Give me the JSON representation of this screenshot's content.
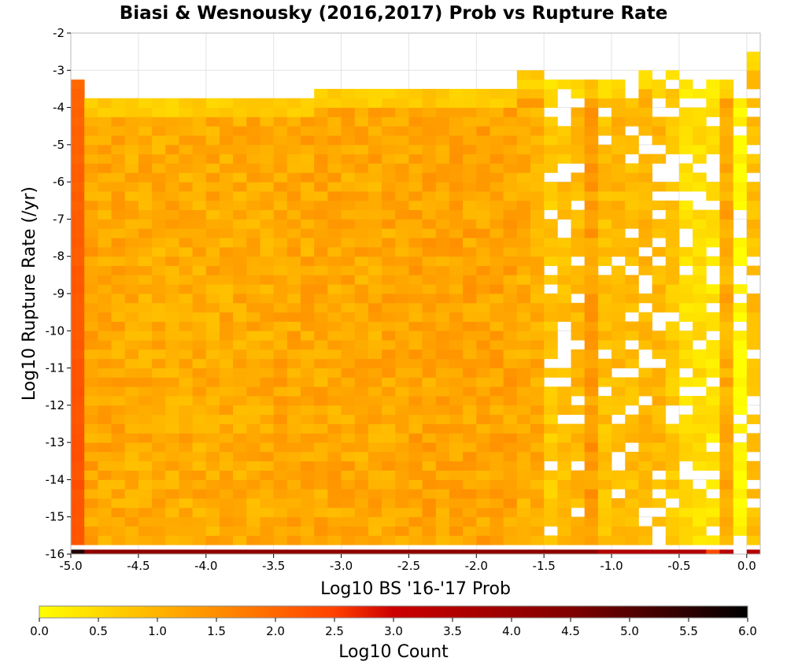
{
  "chart_data": {
    "type": "heatmap",
    "title": "Biasi & Wesnousky (2016,2017) Prob vs Rupture Rate",
    "xlabel": "Log10 BS '16-'17 Prob",
    "ylabel": "Log10 Rupture Rate (/yr)",
    "xlim": [
      -5.0,
      0.1
    ],
    "ylim": [
      -16,
      -2
    ],
    "x_ticks": [
      "-5.0",
      "-4.5",
      "-4.0",
      "-3.5",
      "-3.0",
      "-2.5",
      "-2.0",
      "-1.5",
      "-1.0",
      "-0.5",
      "0.0"
    ],
    "y_ticks": [
      "-2",
      "-3",
      "-4",
      "-5",
      "-6",
      "-7",
      "-8",
      "-9",
      "-10",
      "-11",
      "-12",
      "-13",
      "-14",
      "-15",
      "-16"
    ],
    "bin_width_x": 0.1,
    "bin_width_y": 0.25,
    "grid": true,
    "colorbar": {
      "label": "Log10 Count",
      "range": [
        0.0,
        6.0
      ],
      "ticks": [
        "0.0",
        "0.5",
        "1.0",
        "1.5",
        "2.0",
        "2.5",
        "3.0",
        "3.5",
        "4.0",
        "4.5",
        "5.0",
        "5.5",
        "6.0"
      ],
      "colors": [
        "#ffff00",
        "#ffa500",
        "#ff4000",
        "#cc0000",
        "#800000",
        "#000000"
      ]
    },
    "column_profile": {
      "x": [
        -5.0,
        -4.9,
        -4.8,
        -4.7,
        -4.6,
        -4.5,
        -4.4,
        -4.3,
        -4.2,
        -4.1,
        -4.0,
        -3.9,
        -3.8,
        -3.7,
        -3.6,
        -3.5,
        -3.4,
        -3.3,
        -3.2,
        -3.1,
        -3.0,
        -2.9,
        -2.8,
        -2.7,
        -2.6,
        -2.5,
        -2.4,
        -2.3,
        -2.2,
        -2.1,
        -2.0,
        -1.9,
        -1.8,
        -1.7,
        -1.6,
        -1.5,
        -1.4,
        -1.3,
        -1.2,
        -1.1,
        -1.0,
        -0.9,
        -0.8,
        -0.7,
        -0.6,
        -0.5,
        -0.4,
        -0.3,
        -0.2,
        -0.1,
        0.0
      ],
      "top_y": [
        -3.25,
        -3.75,
        -3.75,
        -3.75,
        -3.75,
        -3.75,
        -3.75,
        -3.75,
        -3.75,
        -3.75,
        -3.75,
        -3.75,
        -3.75,
        -3.75,
        -3.75,
        -3.75,
        -3.75,
        -3.75,
        -3.5,
        -3.5,
        -3.5,
        -3.5,
        -3.5,
        -3.5,
        -3.5,
        -3.5,
        -3.5,
        -3.5,
        -3.5,
        -3.5,
        -3.5,
        -3.5,
        -3.5,
        -3.0,
        -3.0,
        -3.25,
        -3.25,
        -3.25,
        -3.25,
        -3.25,
        -3.25,
        -3.25,
        -3.0,
        -3.25,
        -3.0,
        -3.25,
        -3.25,
        -3.25,
        -3.25,
        -3.25,
        -2.5
      ],
      "level": [
        2.3,
        1.2,
        1.15,
        1.15,
        1.1,
        1.1,
        1.1,
        1.1,
        1.1,
        1.1,
        1.1,
        1.1,
        1.1,
        1.1,
        1.1,
        1.15,
        1.15,
        1.15,
        1.15,
        1.15,
        1.15,
        1.15,
        1.15,
        1.15,
        1.15,
        1.2,
        1.2,
        1.2,
        1.2,
        1.2,
        1.2,
        1.2,
        1.2,
        1.1,
        1.1,
        0.7,
        0.8,
        0.9,
        1.3,
        0.8,
        0.9,
        0.8,
        0.9,
        0.9,
        0.7,
        0.4,
        0.4,
        0.3,
        1.1,
        0.0,
        0.8
      ],
      "bottom_row_level": [
        5.6,
        4.2,
        4.2,
        4.2,
        4.2,
        4.2,
        4.2,
        4.2,
        4.2,
        4.2,
        4.2,
        4.2,
        4.2,
        4.2,
        4.2,
        4.2,
        4.2,
        4.2,
        4.2,
        4.2,
        4.2,
        4.2,
        4.2,
        4.2,
        4.2,
        4.2,
        4.2,
        4.2,
        4.2,
        4.2,
        4.2,
        4.2,
        4.2,
        4.2,
        4.2,
        4.2,
        4.2,
        4.2,
        4.2,
        3.5,
        3.5,
        3.5,
        3.5,
        3.5,
        3.5,
        3.5,
        3.5,
        2.4,
        3.4,
        0.0,
        3.5
      ]
    }
  }
}
